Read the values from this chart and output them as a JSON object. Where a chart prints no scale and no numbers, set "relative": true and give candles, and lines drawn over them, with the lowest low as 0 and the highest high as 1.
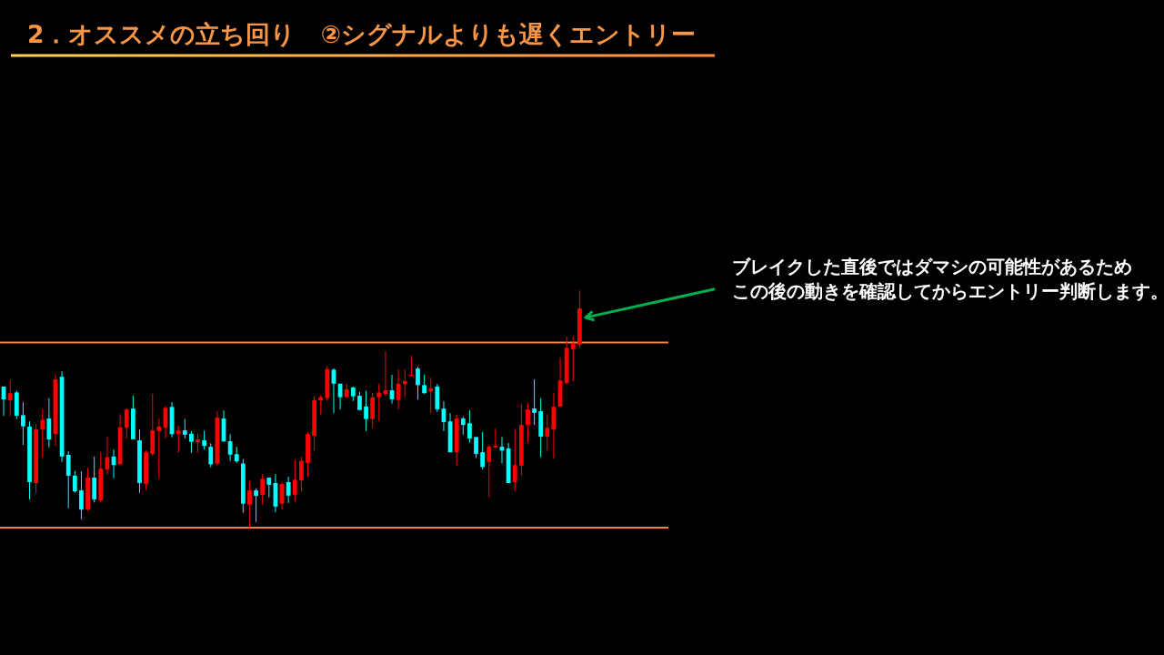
{
  "chart_data": {
    "type": "candlestick",
    "title": "2．オススメの立ち回り　②シグナルよりも遅くエントリー",
    "relative": true,
    "categories": [
      null,
      null,
      null,
      null,
      null,
      null,
      null,
      null,
      null,
      null,
      null,
      null,
      null,
      null,
      null,
      null,
      null,
      null,
      null,
      null,
      null,
      null,
      null,
      null,
      null,
      null,
      null,
      null,
      null,
      null,
      null,
      null,
      null,
      null,
      null,
      null,
      null,
      null,
      null,
      null,
      null,
      null,
      null,
      null,
      null,
      null,
      null,
      null,
      null,
      null,
      null,
      null,
      null,
      null,
      null,
      null,
      null,
      null,
      null,
      null,
      null,
      null,
      null,
      null,
      null,
      null,
      null,
      null,
      null,
      null,
      null,
      null,
      null,
      null,
      null,
      null,
      null,
      null,
      null,
      null,
      null,
      null,
      null,
      null,
      null,
      null,
      null,
      null,
      null,
      null
    ],
    "ohlc": [
      [
        0.595,
        0.595,
        0.471,
        0.541
      ],
      [
        0.537,
        0.623,
        0.471,
        0.567
      ],
      [
        0.57,
        0.578,
        0.458,
        0.472
      ],
      [
        0.474,
        0.529,
        0.349,
        0.427
      ],
      [
        0.426,
        0.448,
        0.119,
        0.192
      ],
      [
        0.188,
        0.437,
        0.145,
        0.414
      ],
      [
        0.414,
        0.499,
        0.294,
        0.454
      ],
      [
        0.46,
        0.546,
        0.339,
        0.372
      ],
      [
        0.395,
        0.648,
        0.345,
        0.625
      ],
      [
        0.636,
        0.659,
        0.277,
        0.3
      ],
      [
        0.307,
        0.322,
        0.082,
        0.219
      ],
      [
        0.219,
        0.239,
        0.147,
        0.153
      ],
      [
        0.157,
        0.237,
        0.035,
        0.076
      ],
      [
        0.077,
        0.253,
        0.07,
        0.211
      ],
      [
        0.211,
        0.3,
        0.106,
        0.119
      ],
      [
        0.115,
        0.318,
        0.106,
        0.249
      ],
      [
        0.245,
        0.384,
        0.224,
        0.297
      ],
      [
        0.3,
        0.329,
        0.208,
        0.264
      ],
      [
        0.267,
        0.478,
        0.267,
        0.423
      ],
      [
        0.421,
        0.502,
        0.376,
        0.499
      ],
      [
        0.502,
        0.556,
        0.373,
        0.373
      ],
      [
        0.368,
        0.414,
        0.147,
        0.188
      ],
      [
        0.185,
        0.326,
        0.157,
        0.318
      ],
      [
        0.311,
        0.564,
        0.303,
        0.41
      ],
      [
        0.408,
        0.461,
        0.208,
        0.426
      ],
      [
        0.421,
        0.513,
        0.377,
        0.505
      ],
      [
        0.509,
        0.529,
        0.381,
        0.394
      ],
      [
        0.396,
        0.431,
        0.316,
        0.41
      ],
      [
        0.41,
        0.458,
        0.377,
        0.392
      ],
      [
        0.396,
        0.407,
        0.316,
        0.362
      ],
      [
        0.359,
        0.396,
        0.316,
        0.372
      ],
      [
        0.368,
        0.409,
        0.329,
        0.345
      ],
      [
        0.341,
        0.356,
        0.254,
        0.267
      ],
      [
        0.27,
        0.491,
        0.262,
        0.464
      ],
      [
        0.46,
        0.495,
        0.361,
        0.364
      ],
      [
        0.364,
        0.394,
        0.281,
        0.308
      ],
      [
        0.31,
        0.341,
        0.273,
        0.28
      ],
      [
        0.27,
        0.29,
        0.063,
        0.101
      ],
      [
        0.097,
        0.196,
        0,
        0.157
      ],
      [
        0.157,
        0.165,
        0.024,
        0.134
      ],
      [
        0.138,
        0.226,
        0.096,
        0.206
      ],
      [
        0.211,
        0.211,
        0.127,
        0.181
      ],
      [
        0.188,
        0.226,
        0.065,
        0.089
      ],
      [
        0.101,
        0.191,
        0.077,
        0.184
      ],
      [
        0.192,
        0.215,
        0.104,
        0.135
      ],
      [
        0.139,
        0.285,
        0.111,
        0.202
      ],
      [
        0.199,
        0.298,
        0.151,
        0.281
      ],
      [
        0.273,
        0.403,
        0.216,
        0.395
      ],
      [
        0.387,
        0.555,
        0.326,
        0.537
      ],
      [
        0.537,
        0.559,
        0.476,
        0.55
      ],
      [
        0.546,
        0.682,
        0.534,
        0.669
      ],
      [
        0.666,
        0.672,
        0.482,
        0.607
      ],
      [
        0.607,
        0.607,
        0.499,
        0.55
      ],
      [
        0.55,
        0.607,
        0.55,
        0.583
      ],
      [
        0.591,
        0.595,
        0.534,
        0.554
      ],
      [
        0.556,
        0.572,
        0.496,
        0.496
      ],
      [
        0.511,
        0.578,
        0.408,
        0.458
      ],
      [
        0.458,
        0.568,
        0.421,
        0.549
      ],
      [
        0.55,
        0.607,
        0.449,
        0.57
      ],
      [
        0.564,
        0.744,
        0.554,
        0.579
      ],
      [
        0.579,
        0.644,
        0.523,
        0.541
      ],
      [
        0.538,
        0.666,
        0.5,
        0.607
      ],
      [
        0.605,
        0.666,
        0.55,
        0.618
      ],
      [
        0.641,
        0.725,
        0.641,
        0.644
      ],
      [
        0.671,
        0.679,
        0.54,
        0.601
      ],
      [
        0.601,
        0.644,
        0.563,
        0.567
      ],
      [
        0.574,
        0.632,
        0.484,
        0.587
      ],
      [
        0.595,
        0.605,
        0.488,
        0.499
      ],
      [
        0.502,
        0.533,
        0.407,
        0.445
      ],
      [
        0.448,
        0.482,
        0.318,
        0.318
      ],
      [
        0.318,
        0.476,
        0.261,
        0.46
      ],
      [
        0.46,
        0.468,
        0.392,
        0.433
      ],
      [
        0.44,
        0.495,
        0.358,
        0.376
      ],
      [
        0.382,
        0.382,
        0.294,
        0.311
      ],
      [
        0.318,
        0.403,
        0.245,
        0.256
      ],
      [
        0.277,
        0.349,
        0.128,
        0.341
      ],
      [
        0.338,
        0.417,
        0.335,
        0.345
      ],
      [
        0.341,
        0.382,
        0.272,
        0.325
      ],
      [
        0.334,
        0.357,
        0.188,
        0.188
      ],
      [
        0.192,
        0.417,
        0.155,
        0.264
      ],
      [
        0.261,
        0.522,
        0.22,
        0.433
      ],
      [
        0.433,
        0.526,
        0.359,
        0.499
      ],
      [
        0.502,
        0.625,
        0.433,
        0.484
      ],
      [
        0.491,
        0.546,
        0.297,
        0.384
      ],
      [
        0.384,
        0.479,
        0.325,
        0.421
      ],
      [
        0.414,
        0.568,
        0.292,
        0.51
      ],
      [
        0.511,
        0.717,
        0.509,
        0.621
      ],
      [
        0.61,
        0.806,
        0.603,
        0.758
      ],
      [
        0.752,
        0.806,
        0.618,
        0.775
      ],
      [
        0.771,
        1,
        0.758,
        0.924
      ]
    ],
    "colors": [
      "#00ffff",
      "#ff0000",
      "#00ffff",
      "#00ffff",
      "#00ffff",
      "#ff0000",
      "#ff0000",
      "#00ffff",
      "#ff0000",
      "#00ffff",
      "#00ffff",
      "#00ffff",
      "#00ffff",
      "#ff0000",
      "#00ffff",
      "#ff0000",
      "#ff0000",
      "#00ffff",
      "#ff0000",
      "#ff0000",
      "#00ffff",
      "#00ffff",
      "#ff0000",
      "#ff0000",
      "#ff0000",
      "#ff0000",
      "#00ffff",
      "#ff0000",
      "#00ffff",
      "#00ffff",
      "#ff0000",
      "#00ffff",
      "#00ffff",
      "#ff0000",
      "#00ffff",
      "#00ffff",
      "#00ffff",
      "#00ffff",
      "#ff0000",
      "#00ffff",
      "#ff0000",
      "#00ffff",
      "#00ffff",
      "#ff0000",
      "#00ffff",
      "#ff0000",
      "#ff0000",
      "#ff0000",
      "#ff0000",
      "#ff0000",
      "#ff0000",
      "#00ffff",
      "#00ffff",
      "#ff0000",
      "#00ffff",
      "#00ffff",
      "#00ffff",
      "#ff0000",
      "#ff0000",
      "#ff0000",
      "#00ffff",
      "#ff0000",
      "#ff0000",
      "#ff0000",
      "#00ffff",
      "#00ffff",
      "#ff0000",
      "#00ffff",
      "#00ffff",
      "#00ffff",
      "#ff0000",
      "#00ffff",
      "#00ffff",
      "#00ffff",
      "#00ffff",
      "#ff0000",
      "#ff0000",
      "#00ffff",
      "#00ffff",
      "#ff0000",
      "#ff0000",
      "#ff0000",
      "#00ffff",
      "#00ffff",
      "#ff0000",
      "#ff0000",
      "#ff0000",
      "#ff0000",
      "#ff0000",
      "#ff0000"
    ],
    "ref_lines": [
      {
        "axis": "y",
        "value": 0.781,
        "color": "#f4813f"
      },
      {
        "axis": "y",
        "value": 0,
        "color": "#f4813f"
      }
    ],
    "annotations": [
      "ブレイクした直後ではダマシの可能性があるためこの後の動きを確認してからエントリー判断します。"
    ]
  }
}
